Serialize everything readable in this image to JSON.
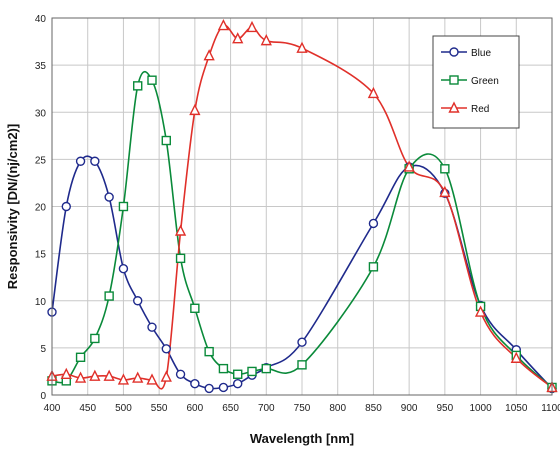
{
  "chart_data": {
    "type": "line",
    "title": "",
    "xlabel": "Wavelength [nm]",
    "ylabel": "Responsivity [DN/(nj/cm2)]",
    "xlim": [
      400,
      1100
    ],
    "ylim": [
      0,
      40
    ],
    "x_ticks": [
      400,
      450,
      500,
      550,
      600,
      650,
      700,
      750,
      800,
      850,
      900,
      950,
      1000,
      1050,
      1100
    ],
    "y_ticks": [
      0,
      5,
      10,
      15,
      20,
      25,
      30,
      35,
      40
    ],
    "grid": true,
    "legend_position": "top-right",
    "series": [
      {
        "name": "Blue",
        "color": "#1f2a8c",
        "marker": "circle",
        "points": [
          [
            400,
            8.8
          ],
          [
            420,
            20
          ],
          [
            440,
            24.8
          ],
          [
            460,
            24.8
          ],
          [
            480,
            21
          ],
          [
            500,
            13.4
          ],
          [
            520,
            10
          ],
          [
            540,
            7.2
          ],
          [
            560,
            4.9
          ],
          [
            580,
            2.2
          ],
          [
            600,
            1.2
          ],
          [
            620,
            0.7
          ],
          [
            640,
            0.8
          ],
          [
            660,
            1.2
          ],
          [
            680,
            2.1
          ],
          [
            700,
            2.9
          ],
          [
            750,
            5.6
          ],
          [
            850,
            18.2
          ],
          [
            900,
            24.2
          ],
          [
            950,
            21.4
          ],
          [
            1000,
            9.5
          ],
          [
            1050,
            4.8
          ],
          [
            1100,
            0.7
          ]
        ],
        "marked_x": [
          400,
          420,
          440,
          460,
          480,
          500,
          520,
          540,
          560,
          580,
          600,
          620,
          640,
          660,
          680,
          700,
          750,
          850,
          900,
          950,
          1000,
          1050,
          1100
        ]
      },
      {
        "name": "Green",
        "color": "#0a8a3a",
        "marker": "square",
        "points": [
          [
            400,
            1.5
          ],
          [
            420,
            1.5
          ],
          [
            440,
            4
          ],
          [
            460,
            6
          ],
          [
            480,
            10.5
          ],
          [
            500,
            20
          ],
          [
            520,
            32.8
          ],
          [
            540,
            33.4
          ],
          [
            560,
            27
          ],
          [
            580,
            14.5
          ],
          [
            600,
            9.2
          ],
          [
            620,
            4.6
          ],
          [
            640,
            2.8
          ],
          [
            660,
            2.2
          ],
          [
            680,
            2.5
          ],
          [
            700,
            2.8
          ],
          [
            750,
            3.2
          ],
          [
            850,
            13.6
          ],
          [
            900,
            24
          ],
          [
            950,
            24
          ],
          [
            1000,
            9.4
          ],
          [
            1050,
            4.2
          ],
          [
            1100,
            0.8
          ]
        ],
        "marked_x": [
          400,
          420,
          440,
          460,
          480,
          500,
          520,
          540,
          560,
          580,
          600,
          620,
          640,
          660,
          680,
          700,
          750,
          850,
          900,
          950,
          1000,
          1050,
          1100
        ]
      },
      {
        "name": "Red",
        "color": "#e0302a",
        "marker": "triangle",
        "points": [
          [
            400,
            2
          ],
          [
            420,
            2.2
          ],
          [
            440,
            1.8
          ],
          [
            460,
            2
          ],
          [
            480,
            2
          ],
          [
            500,
            1.6
          ],
          [
            520,
            1.8
          ],
          [
            540,
            1.6
          ],
          [
            560,
            1.9
          ],
          [
            580,
            17.4
          ],
          [
            600,
            30.2
          ],
          [
            620,
            36
          ],
          [
            640,
            39.2
          ],
          [
            660,
            37.8
          ],
          [
            680,
            39
          ],
          [
            700,
            37.6
          ],
          [
            750,
            36.8
          ],
          [
            850,
            32
          ],
          [
            900,
            24.2
          ],
          [
            950,
            21.5
          ],
          [
            1000,
            8.8
          ],
          [
            1050,
            3.9
          ],
          [
            1100,
            0.8
          ]
        ],
        "marked_x": [
          400,
          420,
          440,
          460,
          480,
          500,
          520,
          540,
          560,
          580,
          600,
          620,
          640,
          660,
          680,
          700,
          750,
          850,
          900,
          950,
          1000,
          1050,
          1100
        ]
      }
    ]
  }
}
